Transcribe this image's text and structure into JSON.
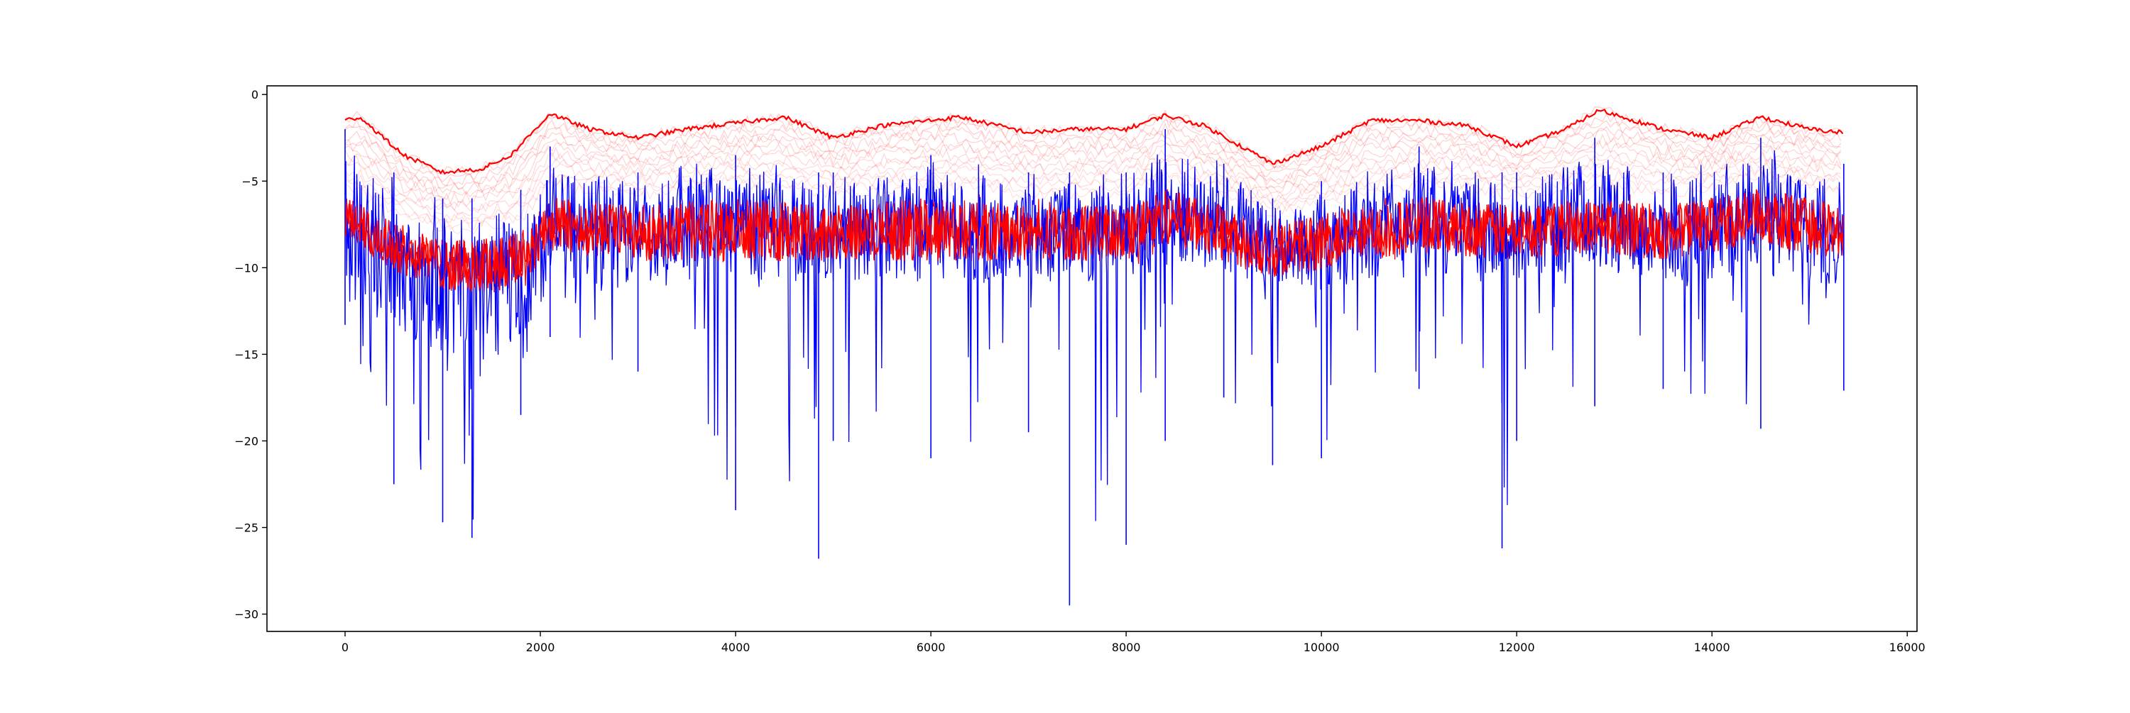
{
  "chart_data": {
    "type": "line",
    "title": "",
    "xlabel": "",
    "ylabel": "",
    "xlim": [
      -800,
      16100
    ],
    "ylim": [
      -31,
      0.5
    ],
    "x_ticks": [
      0,
      2000,
      4000,
      6000,
      8000,
      10000,
      12000,
      14000,
      16000
    ],
    "x_tick_labels": [
      "0",
      "2000",
      "4000",
      "6000",
      "8000",
      "10000",
      "12000",
      "14000",
      "16000"
    ],
    "y_ticks": [
      0,
      -5,
      -10,
      -15,
      -20,
      -25,
      -30
    ],
    "y_tick_labels": [
      "0",
      "−5",
      "−10",
      "−15",
      "−20",
      "−25",
      "−30"
    ],
    "grid": false,
    "legend": "none",
    "colors": {
      "blue_series": "#0000ff",
      "red_series": "#ff0000",
      "faint_band": "#ff0000"
    },
    "n_points": 15350,
    "series": [
      {
        "color": "#0000ff",
        "description_points": {
          "x": [
            0,
            500,
            1000,
            1300,
            1800,
            2100,
            3000,
            4000,
            4850,
            5000,
            6000,
            7000,
            7420,
            8000,
            8400,
            9000,
            9500,
            10000,
            11000,
            11850,
            12000,
            12800,
            13500,
            14500,
            15350
          ],
          "center": [
            -7.5,
            -9.5,
            -11.0,
            -11.5,
            -10.5,
            -7.5,
            -8.0,
            -7.5,
            -8.0,
            -8.0,
            -7.5,
            -8.0,
            -8.0,
            -8.0,
            -6.5,
            -7.5,
            -9.0,
            -8.5,
            -7.0,
            -8.0,
            -8.0,
            -6.8,
            -8.0,
            -7.0,
            -8.0
          ],
          "upper": [
            -2.0,
            -4.5,
            -6.0,
            -6.0,
            -5.5,
            -3.0,
            -4.5,
            -3.5,
            -4.5,
            -4.5,
            -3.5,
            -4.5,
            -4.5,
            -4.5,
            -2.0,
            -4.0,
            -6.0,
            -5.0,
            -3.0,
            -4.5,
            -4.5,
            -2.5,
            -4.5,
            -2.5,
            -4.0
          ],
          "lower": [
            -13.3,
            -22.5,
            -24.7,
            -25.6,
            -18.5,
            -14.0,
            -16.0,
            -24.0,
            -26.8,
            -20.0,
            -21.0,
            -19.5,
            -29.5,
            -26.0,
            -20.0,
            -17.5,
            -21.4,
            -21.0,
            -17.0,
            -26.2,
            -20.0,
            -18.0,
            -17.0,
            -19.3,
            -17.1
          ]
        }
      },
      {
        "color": "#ff0000",
        "description_points": {
          "x": [
            0,
            500,
            1000,
            1300,
            1800,
            2100,
            3000,
            4000,
            5000,
            6000,
            7000,
            8000,
            8400,
            9000,
            9500,
            10000,
            11000,
            12000,
            12800,
            13500,
            14500,
            15350
          ],
          "center": [
            -7.0,
            -8.8,
            -9.8,
            -10.0,
            -9.5,
            -7.5,
            -8.0,
            -7.8,
            -8.0,
            -7.8,
            -8.0,
            -8.0,
            -7.0,
            -8.0,
            -9.0,
            -8.5,
            -7.5,
            -8.0,
            -7.5,
            -8.0,
            -7.0,
            -8.0
          ],
          "upper": [
            -5.5,
            -7.0,
            -8.0,
            -8.0,
            -7.5,
            -5.5,
            -6.0,
            -5.5,
            -6.0,
            -5.5,
            -6.0,
            -6.0,
            -5.0,
            -6.0,
            -7.0,
            -6.5,
            -5.5,
            -6.0,
            -5.5,
            -6.0,
            -5.0,
            -6.0
          ],
          "lower": [
            -8.5,
            -10.5,
            -11.5,
            -12.0,
            -11.5,
            -9.5,
            -10.0,
            -10.0,
            -10.0,
            -10.0,
            -10.0,
            -10.0,
            -9.5,
            -10.0,
            -11.0,
            -10.5,
            -9.5,
            -10.0,
            -9.5,
            -10.0,
            -9.5,
            -10.0
          ]
        }
      },
      {
        "color": "#ff0000",
        "description_points": {
          "x": [
            0,
            150,
            600,
            1000,
            1400,
            1700,
            2100,
            2500,
            3000,
            3500,
            4500,
            5000,
            5500,
            6300,
            7000,
            7500,
            8000,
            8400,
            8800,
            9500,
            10000,
            10500,
            11000,
            11500,
            12000,
            12500,
            12850,
            13500,
            14000,
            14500,
            15000,
            15350
          ],
          "envelope": [
            -1.5,
            -1.3,
            -3.5,
            -4.5,
            -4.3,
            -3.5,
            -1.1,
            -2.0,
            -2.5,
            -2.0,
            -1.3,
            -2.5,
            -1.8,
            -1.3,
            -2.2,
            -2.0,
            -2.0,
            -1.2,
            -1.8,
            -4.0,
            -3.0,
            -1.5,
            -1.5,
            -1.8,
            -3.0,
            -2.0,
            -0.9,
            -2.0,
            -2.5,
            -1.3,
            -2.0,
            -2.2
          ]
        }
      }
    ]
  }
}
